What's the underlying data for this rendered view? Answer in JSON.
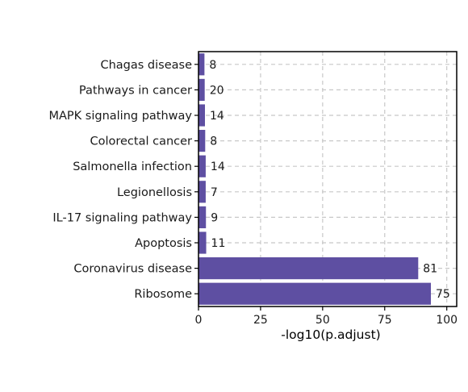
{
  "chart_data": {
    "type": "bar",
    "orientation": "horizontal",
    "categories": [
      "Chagas disease",
      "Pathways in cancer",
      "MAPK signaling pathway",
      "Colorectal cancer",
      "Salmonella infection",
      "Legionellosis",
      "IL-17 signaling pathway",
      "Apoptosis",
      "Coronavirus disease",
      "Ribosome"
    ],
    "values": [
      2.4,
      2.5,
      2.6,
      2.7,
      2.9,
      2.9,
      3.0,
      3.1,
      88.5,
      93.6
    ],
    "bar_labels": [
      "8",
      "20",
      "14",
      "8",
      "14",
      "7",
      "9",
      "11",
      "81",
      "75"
    ],
    "xlabel": "-log10(p.adjust)",
    "ylabel": "",
    "title": "",
    "xlim": [
      0,
      104
    ],
    "xticks": [
      0,
      25,
      50,
      75,
      100
    ],
    "grid": true,
    "legend": "none",
    "bar_color": "#5e4fa2"
  }
}
